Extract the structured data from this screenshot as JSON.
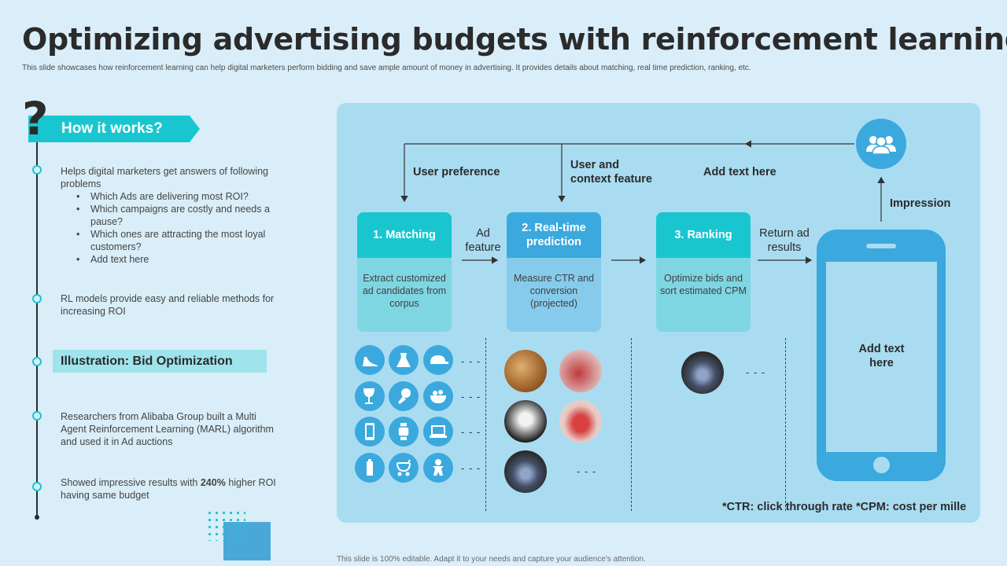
{
  "title": "Optimizing advertising budgets with reinforcement learning",
  "subtitle": "This slide showcases how reinforcement learning can help digital marketers perform bidding and save ample amount of money in advertising. It provides details about matching, real time prediction, ranking, etc.",
  "footer": "This slide is 100% editable. Adapt it to your needs and capture your audience's attention.",
  "left": {
    "banner": "How it works?",
    "point1_intro": "Helps digital marketers get answers of following problems",
    "point1_bullets": [
      "Which Ads are delivering  most ROI?",
      "Which campaigns are costly and needs a pause?",
      "Which ones are attracting the most loyal customers?",
      "Add text here"
    ],
    "point2": "RL models provide  easy and reliable methods for increasing ROI",
    "illustration": "Illustration:  Bid Optimization",
    "point3": "Researchers from Alibaba Group built a Multi Agent Reinforcement  Learning (MARL) algorithm and used it in Ad auctions",
    "point4_pre": "Showed impressive  results with ",
    "point4_bold": "240%",
    "point4_post": " higher ROI having  same budget"
  },
  "diagram": {
    "top_labels": {
      "user_preference": "User preference",
      "context_line1": "User and",
      "context_line2": "context feature",
      "add_text": "Add  text here",
      "impression": "Impression"
    },
    "edge_labels": {
      "ad_feature_1": "Ad",
      "ad_feature_2": "feature",
      "return_1": "Return ad",
      "return_2": "results"
    },
    "cards": [
      {
        "title": "1. Matching",
        "body": "Extract customized ad candidates from corpus",
        "head_color": "#19c6cf",
        "body_color": "#7fd6e3"
      },
      {
        "title": "2. Real-time prediction",
        "body": "Measure CTR and conversion (projected)",
        "head_color": "#3ba9dd",
        "body_color": "#86cbeb"
      },
      {
        "title": "3. Ranking",
        "body": "Optimize bids and sort estimated CPM",
        "head_color": "#19c6cf",
        "body_color": "#7fd6e3"
      }
    ],
    "icons": [
      "heel-shoe-icon",
      "dress-icon",
      "cap-icon",
      "wine-glass-icon",
      "drumstick-icon",
      "salad-bowl-icon",
      "smartphone-icon",
      "smartwatch-icon",
      "laptop-icon",
      "baby-bottle-icon",
      "stroller-icon",
      "gingerbread-icon"
    ],
    "dash": "- - -",
    "phone_text_1": "Add  text",
    "phone_text_2": "here",
    "note": "*CTR: click through rate *CPM: cost per mille"
  },
  "colors": {
    "accent": "#19c6cf",
    "blue": "#3ba9dd",
    "panel": "#a9dcf1",
    "background": "#d9eef8"
  }
}
